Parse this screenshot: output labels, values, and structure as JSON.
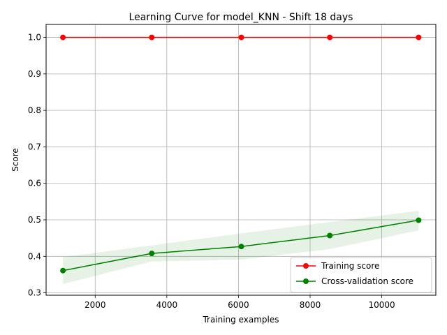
{
  "chart_data": {
    "type": "line",
    "title": "Learning Curve for model_KNN - Shift 18 days",
    "xlabel": "Training examples",
    "ylabel": "Score",
    "xlim": [
      630,
      11510
    ],
    "ylim": [
      0.2935,
      1.0355
    ],
    "xticks": [
      2000,
      4000,
      6000,
      8000,
      10000
    ],
    "yticks": [
      0.3,
      0.4,
      0.5,
      0.6,
      0.7,
      0.8,
      0.9,
      1.0
    ],
    "xtick_labels": [
      "2000",
      "4000",
      "6000",
      "8000",
      "10000"
    ],
    "ytick_labels": [
      "0.3",
      "0.4",
      "0.5",
      "0.6",
      "0.7",
      "0.8",
      "0.9",
      "1.0"
    ],
    "grid": true,
    "legend_position": "lower-right",
    "x": [
      1100,
      3580,
      6080,
      8550,
      11030
    ],
    "series": [
      {
        "name": "Training score",
        "color": "#ff0000",
        "values": [
          1.0,
          1.0,
          1.0,
          1.0,
          1.0
        ],
        "band_lower": [
          1.0,
          1.0,
          1.0,
          1.0,
          1.0
        ],
        "band_upper": [
          1.0,
          1.0,
          1.0,
          1.0,
          1.0
        ]
      },
      {
        "name": "Cross-validation score",
        "color": "#008000",
        "values": [
          0.361,
          0.408,
          0.427,
          0.457,
          0.499
        ],
        "band_lower": [
          0.324,
          0.386,
          0.391,
          0.42,
          0.471
        ],
        "band_upper": [
          0.398,
          0.43,
          0.463,
          0.494,
          0.525
        ]
      }
    ]
  }
}
